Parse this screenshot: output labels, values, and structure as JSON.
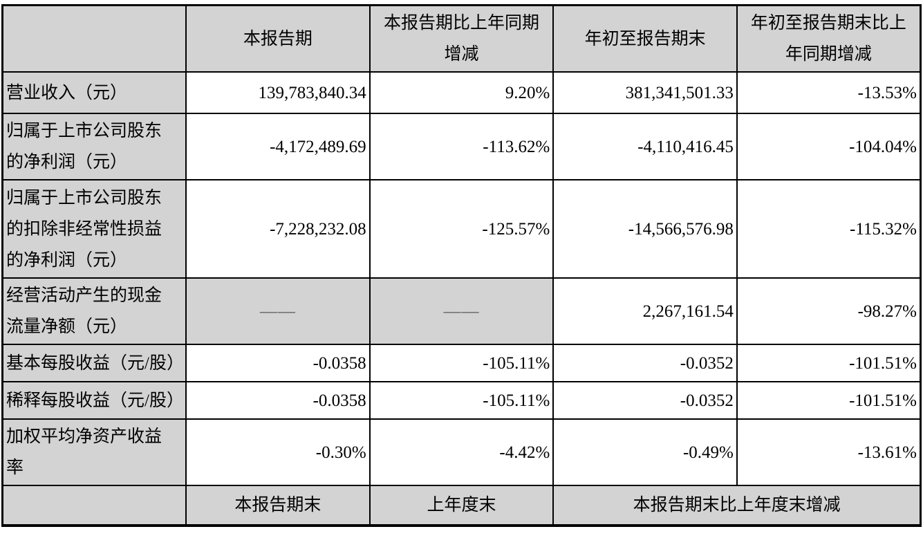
{
  "table": {
    "title_hint": "主要会计数据和财务指标摘要",
    "colors": {
      "shading": "#d3d3d3",
      "border": "#000000",
      "dash_text": "#595959"
    },
    "header": {
      "corner": "",
      "current_period": "本报告期",
      "current_period_yoy": "本报告期比上年同期\n增减",
      "ytd": "年初至报告期末",
      "ytd_yoy": "年初至报告期末比上\n年同期增减"
    },
    "rows": [
      {
        "label": "营业收入（元）",
        "current_period": "139,783,840.34",
        "current_period_yoy": "9.20%",
        "ytd": "381,341,501.33",
        "ytd_yoy": "-13.53%"
      },
      {
        "label": "归属于上市公司股东\n的净利润（元）",
        "current_period": "-4,172,489.69",
        "current_period_yoy": "-113.62%",
        "ytd": "-4,110,416.45",
        "ytd_yoy": "-104.04%"
      },
      {
        "label": "归属于上市公司股东\n的扣除非经常性损益\n的净利润（元）",
        "current_period": "-7,228,232.08",
        "current_period_yoy": "-125.57%",
        "ytd": "-14,566,576.98",
        "ytd_yoy": "-115.32%"
      },
      {
        "label": "经营活动产生的现金\n流量净额（元）",
        "current_period": "——",
        "current_period_yoy": "——",
        "ytd": "2,267,161.54",
        "ytd_yoy": "-98.27%"
      },
      {
        "label": "基本每股收益（元/股）",
        "current_period": "-0.0358",
        "current_period_yoy": "-105.11%",
        "ytd": "-0.0352",
        "ytd_yoy": "-101.51%"
      },
      {
        "label": "稀释每股收益（元/股）",
        "current_period": "-0.0358",
        "current_period_yoy": "-105.11%",
        "ytd": "-0.0352",
        "ytd_yoy": "-101.51%"
      },
      {
        "label": "加权平均净资产收益\n率",
        "current_period": "-0.30%",
        "current_period_yoy": "-4.42%",
        "ytd": "-0.49%",
        "ytd_yoy": "-13.61%"
      }
    ],
    "footer": {
      "corner": "",
      "current_period_end": "本报告期末",
      "prior_year_end": "上年度末",
      "change_vs_prior_year_end": "本报告期末比上年度末增减"
    }
  }
}
